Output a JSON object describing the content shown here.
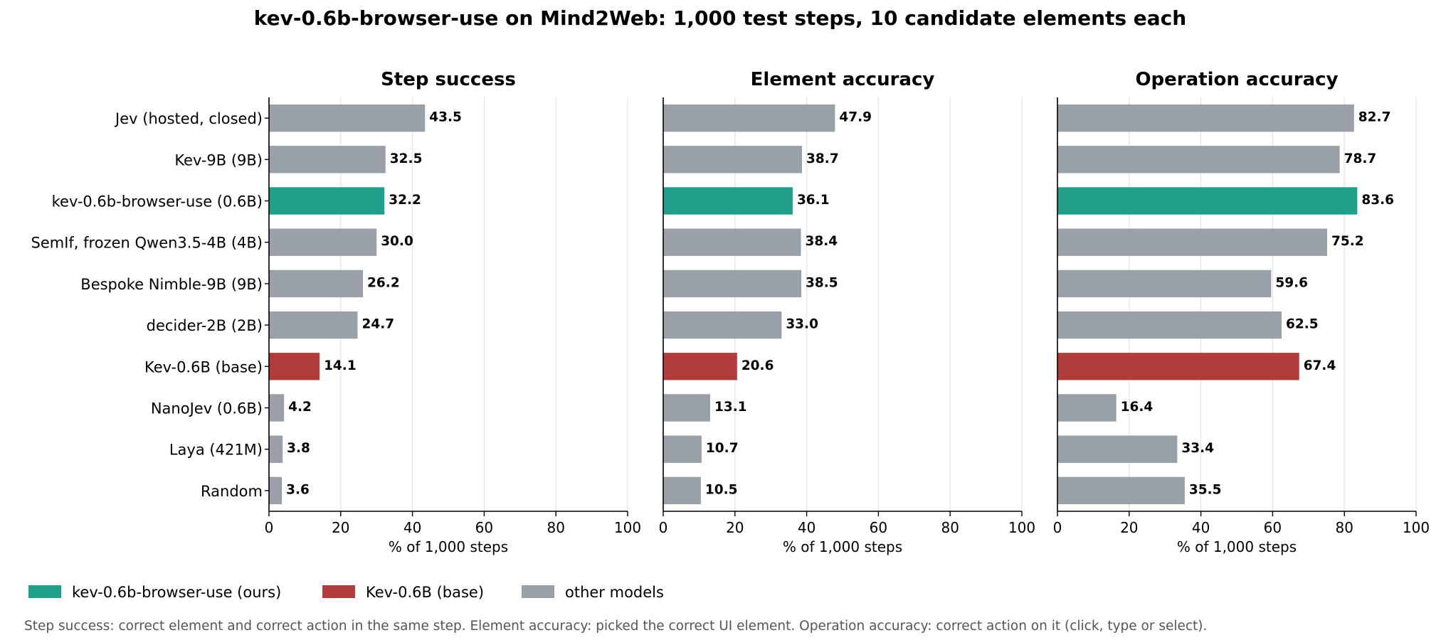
{
  "title": "kev-0.6b-browser-use on Mind2Web: 1,000 test steps, 10 candidate elements each",
  "colors": {
    "ours": "#20a08a",
    "base": "#b03c3c",
    "other": "#9aa0a8"
  },
  "legend": [
    {
      "label": "kev-0.6b-browser-use (ours)",
      "color_key": "ours"
    },
    {
      "label": "Kev-0.6B (base)",
      "color_key": "base"
    },
    {
      "label": "other models",
      "color_key": "other"
    }
  ],
  "caption": "Step success: correct element and correct action in the same step.   Element accuracy: picked the correct UI element.   Operation accuracy: correct action on it (click, type or select).",
  "chart_data": {
    "type": "bar",
    "orientation": "horizontal",
    "categories": [
      "Jev (hosted, closed)",
      "Kev-9B  (9B)",
      "kev-0.6b-browser-use  (0.6B)",
      "SemIf, frozen Qwen3.5-4B  (4B)",
      "Bespoke Nimble-9B  (9B)",
      "decider-2B  (2B)",
      "Kev-0.6B (base)",
      "NanoJev  (0.6B)",
      "Laya  (421M)",
      "Random"
    ],
    "bar_color_keys": [
      "other",
      "other",
      "ours",
      "other",
      "other",
      "other",
      "base",
      "other",
      "other",
      "other"
    ],
    "xlim": [
      0,
      100
    ],
    "xticks": [
      0,
      20,
      40,
      60,
      80,
      100
    ],
    "grid": "vertical",
    "legend_position": "bottom-left",
    "panels": [
      {
        "title": "Step success",
        "xlabel": "% of 1,000 steps",
        "values": [
          43.5,
          32.5,
          32.2,
          30.0,
          26.2,
          24.7,
          14.1,
          4.2,
          3.8,
          3.6
        ]
      },
      {
        "title": "Element accuracy",
        "xlabel": "% of 1,000 steps",
        "values": [
          47.9,
          38.7,
          36.1,
          38.4,
          38.5,
          33.0,
          20.6,
          13.1,
          10.7,
          10.5
        ]
      },
      {
        "title": "Operation accuracy",
        "xlabel": "% of 1,000 steps",
        "values": [
          82.7,
          78.7,
          83.6,
          75.2,
          59.6,
          62.5,
          67.4,
          16.4,
          33.4,
          35.5
        ]
      }
    ]
  }
}
